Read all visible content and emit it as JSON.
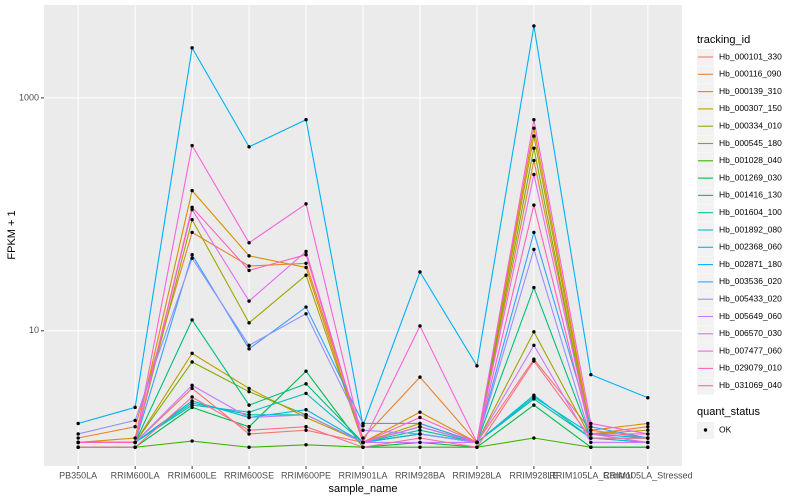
{
  "chart_data": {
    "type": "line",
    "x_label": "sample_name",
    "y_label": "FPKM + 1",
    "categories": [
      "PB350LA",
      "RRIM600LA",
      "RRIM600LE",
      "RRIM600SE",
      "RRIM600PE",
      "RRIM901LA",
      "RRIM928BA",
      "RRIM928LA",
      "RRIM928LE",
      "RRIM105LA_Control",
      "RRIM105LA_Stressed"
    ],
    "log_y": true,
    "ylim": [
      0.69,
      6280
    ],
    "yticks": [
      10,
      1000
    ],
    "grid": true,
    "legend_title": "tracking_id",
    "legend_position": "right",
    "point_legend_title": "quant_status",
    "point_legend_labels": [
      "OK"
    ],
    "point_color": "#000000",
    "series": [
      {
        "name": "Hb_000101_330",
        "color": "#F8766D",
        "values": [
          1.1,
          1.1,
          3.2,
          1.3,
          1.4,
          1.1,
          1.3,
          1.1,
          5.7,
          1.4,
          1.2
        ]
      },
      {
        "name": "Hb_000116_090",
        "color": "#EA8331",
        "values": [
          1.2,
          1.5,
          70,
          36,
          38,
          1.2,
          4.0,
          1.1,
          290,
          1.3,
          1.5
        ]
      },
      {
        "name": "Hb_000139_310",
        "color": "#D89000",
        "values": [
          1.1,
          1.2,
          160,
          44,
          35,
          1.1,
          2.0,
          1.1,
          550,
          1.4,
          1.6
        ]
      },
      {
        "name": "Hb_000307_150",
        "color": "#C09B00",
        "values": [
          1.1,
          1.1,
          6.4,
          3.2,
          1.8,
          1.1,
          1.6,
          1.1,
          470,
          1.3,
          1.4
        ]
      },
      {
        "name": "Hb_000334_010",
        "color": "#A3A500",
        "values": [
          1.1,
          1.1,
          90,
          11.7,
          30,
          1.1,
          1.5,
          1.1,
          9.8,
          1.2,
          1.2
        ]
      },
      {
        "name": "Hb_000545_180",
        "color": "#7CAE00",
        "values": [
          1.1,
          1.1,
          5.4,
          3.0,
          1.9,
          1.1,
          1.3,
          1.1,
          370,
          1.2,
          1.2
        ]
      },
      {
        "name": "Hb_001028_040",
        "color": "#39B600",
        "values": [
          1.0,
          1.0,
          1.13,
          1.0,
          1.05,
          1.0,
          1.0,
          1.0,
          1.2,
          1.0,
          1.0
        ]
      },
      {
        "name": "Hb_001269_030",
        "color": "#00BB4E",
        "values": [
          1.0,
          1.0,
          2.2,
          1.5,
          4.5,
          1.0,
          1.1,
          1.0,
          2.3,
          1.0,
          1.0
        ]
      },
      {
        "name": "Hb_001416_130",
        "color": "#00BF7D",
        "values": [
          1.1,
          1.1,
          12.4,
          2.3,
          3.5,
          1.1,
          1.3,
          1.1,
          23.5,
          1.2,
          1.1
        ]
      },
      {
        "name": "Hb_001604_100",
        "color": "#00C1A3",
        "values": [
          1.1,
          1.1,
          2.4,
          1.9,
          1.9,
          1.1,
          1.4,
          1.1,
          2.6,
          1.2,
          1.2
        ]
      },
      {
        "name": "Hb_001892_080",
        "color": "#00BFC4",
        "values": [
          1.1,
          1.1,
          2.3,
          2.0,
          2.9,
          1.1,
          1.5,
          1.1,
          2.8,
          1.2,
          1.1
        ]
      },
      {
        "name": "Hb_002368_060",
        "color": "#00BAE0",
        "values": [
          1.1,
          1.1,
          2.5,
          1.8,
          2.1,
          1.1,
          1.3,
          1.1,
          2.7,
          1.3,
          1.2
        ]
      },
      {
        "name": "Hb_002871_180",
        "color": "#00B0F6",
        "values": [
          1.6,
          2.2,
          2690,
          380,
          650,
          1.53,
          32,
          5.0,
          4150,
          4.2,
          2.66
        ]
      },
      {
        "name": "Hb_003536_020",
        "color": "#35A2FF",
        "values": [
          1.1,
          1.1,
          45,
          7.0,
          16,
          1.6,
          1.6,
          1.1,
          70,
          1.5,
          1.2
        ]
      },
      {
        "name": "Hb_005433_020",
        "color": "#9590FF",
        "values": [
          1.3,
          1.7,
          42,
          7.5,
          14,
          1.4,
          1.3,
          1.1,
          50,
          1.2,
          1.2
        ]
      },
      {
        "name": "Hb_005649_060",
        "color": "#C77CFF",
        "values": [
          1.1,
          1.1,
          3.4,
          1.8,
          1.9,
          1.1,
          1.1,
          1.1,
          7.5,
          1.1,
          1.1
        ]
      },
      {
        "name": "Hb_006570_030",
        "color": "#E76BF3",
        "values": [
          1.1,
          1.1,
          110,
          18,
          48,
          1.1,
          1.5,
          1.1,
          220,
          1.3,
          1.1
        ]
      },
      {
        "name": "Hb_007477_060",
        "color": "#FA62DB",
        "values": [
          1.1,
          1.1,
          390,
          57,
          123,
          1.1,
          11,
          1.1,
          650,
          1.6,
          1.3
        ]
      },
      {
        "name": "Hb_029079_010",
        "color": "#FF62BC",
        "values": [
          1.1,
          1.1,
          115,
          33,
          45,
          1.1,
          1.8,
          1.1,
          120,
          1.3,
          1.3
        ]
      },
      {
        "name": "Hb_031069_040",
        "color": "#FF6C91",
        "values": [
          1.0,
          1.0,
          2.7,
          1.4,
          1.5,
          1.0,
          1.2,
          1.0,
          5.5,
          1.2,
          1.2
        ]
      }
    ]
  }
}
